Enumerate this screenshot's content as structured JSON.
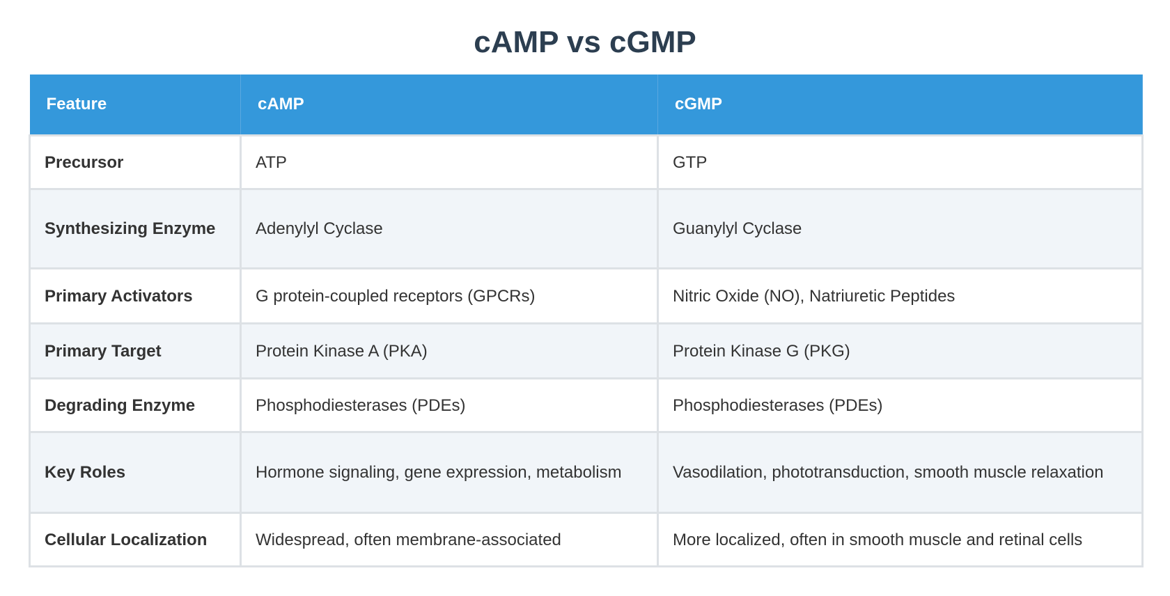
{
  "header": {
    "title": "cAMP vs cGMP"
  },
  "table": {
    "columns": [
      "Feature",
      "cAMP",
      "cGMP"
    ],
    "rows": [
      [
        "Precursor",
        "ATP",
        "GTP"
      ],
      [
        "Synthesizing Enzyme",
        "Adenylyl Cyclase",
        "Guanylyl Cyclase"
      ],
      [
        "Primary Activators",
        "G protein-coupled receptors (GPCRs)",
        "Nitric Oxide (NO), Natriuretic Peptides"
      ],
      [
        "Primary Target",
        "Protein Kinase A (PKA)",
        "Protein Kinase G (PKG)"
      ],
      [
        "Degrading Enzyme",
        "Phosphodiesterases (PDEs)",
        "Phosphodiesterases (PDEs)"
      ],
      [
        "Key Roles",
        "Hormone signaling, gene expression, metabolism",
        "Vasodilation, phototransduction, smooth muscle relaxation"
      ],
      [
        "Cellular Localization",
        "Widespread, often membrane-associated",
        "More localized, often in smooth muscle and retinal cells"
      ]
    ]
  }
}
